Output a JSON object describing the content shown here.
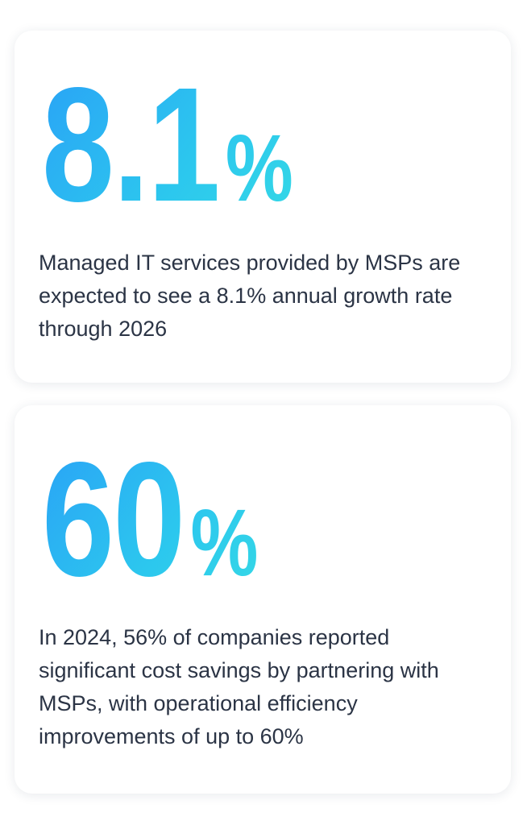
{
  "cards": [
    {
      "value": "8.1",
      "unit": "%",
      "description": "Managed IT services provided by MSPs are expected to see a 8.1% annual growth rate through 2026"
    },
    {
      "value": "60",
      "unit": "%",
      "description": "In 2024, 56% of companies reported significant cost savings by partnering with MSPs, with operational efficiency improvements of up to 60%"
    }
  ]
}
